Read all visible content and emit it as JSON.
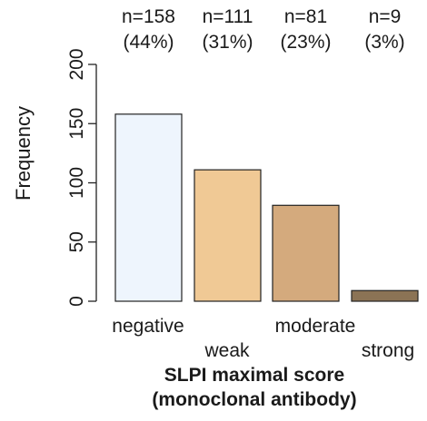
{
  "chart_data": {
    "type": "bar",
    "categories": [
      "negative",
      "weak",
      "moderate",
      "strong"
    ],
    "values": [
      158,
      111,
      81,
      9
    ],
    "annotations": [
      {
        "count": "n=158",
        "percent": "(44%)"
      },
      {
        "count": "n=111",
        "percent": "(31%)"
      },
      {
        "count": "n=81",
        "percent": "(23%)"
      },
      {
        "count": "n=9",
        "percent": "(3%)"
      }
    ],
    "colors": [
      "#eef5fd",
      "#f0c995",
      "#d4aa7d",
      "#8b7355"
    ],
    "ylabel": "Frequency",
    "xlabel_line1": "SLPI maximal score",
    "xlabel_line2": "(monoclonal antibody)",
    "ylim": [
      0,
      200
    ],
    "yticks": [
      0,
      50,
      100,
      150,
      200
    ],
    "grid": false
  }
}
